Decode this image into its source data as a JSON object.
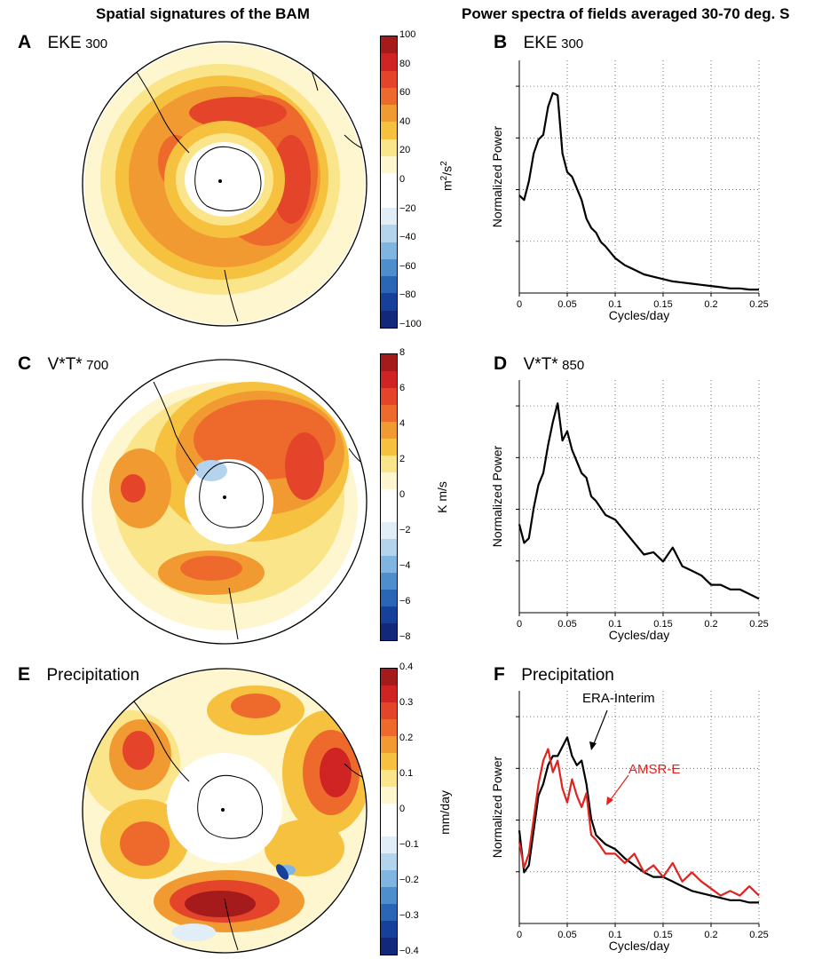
{
  "titles": {
    "left": "Spatial signatures of the BAM",
    "right": "Power spectra of fields averaged 30-70 deg. S"
  },
  "panels": {
    "A": {
      "letter": "A",
      "name": "EKE",
      "level": "300",
      "unit_base": "m",
      "unit_sup1": "2",
      "unit_mid": "/s",
      "unit_sup2": "2"
    },
    "B": {
      "letter": "B",
      "name": "EKE",
      "level": "300"
    },
    "C": {
      "letter": "C",
      "name": "V*T*",
      "level": "700",
      "unit": "K m/s"
    },
    "D": {
      "letter": "D",
      "name": "V*T*",
      "level": "850"
    },
    "E": {
      "letter": "E",
      "name": "Precipitation",
      "unit": "mm/day"
    },
    "F": {
      "letter": "F",
      "name": "Precipitation",
      "ann_black": "ERA-Interim",
      "ann_red": "AMSR-E"
    }
  },
  "colorbars": {
    "A": [
      "100",
      "80",
      "60",
      "40",
      "20",
      "0",
      "−20",
      "−40",
      "−60",
      "−80",
      "−100"
    ],
    "C": [
      "8",
      "6",
      "4",
      "2",
      "0",
      "−2",
      "−4",
      "−6",
      "−8"
    ],
    "E": [
      "0.4",
      "0.3",
      "0.2",
      "0.1",
      "0",
      "−0.1",
      "−0.2",
      "−0.3",
      "−0.4"
    ]
  },
  "colorbar_colors": [
    "#a51b1b",
    "#d02323",
    "#e4452a",
    "#ee6a2c",
    "#f29a32",
    "#f6c13f",
    "#fbe58a",
    "#fdf6cf",
    "#ffffff",
    "#ffffff",
    "#e1eef8",
    "#b4d4ee",
    "#7fb5e0",
    "#4f8ecd",
    "#2a66b5",
    "#17409a",
    "#12287a"
  ],
  "chart_data": [
    {
      "type": "line",
      "panel": "B",
      "xlabel": "Cycles/day",
      "ylabel": "Normalized Power",
      "xlim": [
        0,
        0.25
      ],
      "xticks": [
        "0",
        "0.05",
        "0.1",
        "0.15",
        "0.2",
        "0.25"
      ],
      "series": [
        {
          "color": "#000000",
          "x": [
            0,
            0.005,
            0.01,
            0.015,
            0.02,
            0.025,
            0.03,
            0.035,
            0.04,
            0.045,
            0.05,
            0.055,
            0.06,
            0.065,
            0.07,
            0.075,
            0.08,
            0.085,
            0.09,
            0.1,
            0.11,
            0.12,
            0.13,
            0.14,
            0.15,
            0.16,
            0.17,
            0.18,
            0.19,
            0.2,
            0.21,
            0.22,
            0.23,
            0.24,
            0.25
          ],
          "y": [
            0.42,
            0.4,
            0.48,
            0.6,
            0.66,
            0.68,
            0.8,
            0.86,
            0.85,
            0.6,
            0.52,
            0.5,
            0.45,
            0.4,
            0.32,
            0.28,
            0.26,
            0.22,
            0.2,
            0.15,
            0.12,
            0.1,
            0.08,
            0.07,
            0.06,
            0.05,
            0.045,
            0.04,
            0.035,
            0.03,
            0.025,
            0.02,
            0.02,
            0.015,
            0.015
          ]
        }
      ]
    },
    {
      "type": "line",
      "panel": "D",
      "xlabel": "Cycles/day",
      "ylabel": "Normalized Power",
      "xlim": [
        0,
        0.25
      ],
      "xticks": [
        "0",
        "0.05",
        "0.1",
        "0.15",
        "0.2",
        "0.25"
      ],
      "series": [
        {
          "color": "#000000",
          "x": [
            0,
            0.005,
            0.01,
            0.015,
            0.02,
            0.025,
            0.03,
            0.035,
            0.04,
            0.045,
            0.05,
            0.055,
            0.06,
            0.065,
            0.07,
            0.075,
            0.08,
            0.09,
            0.1,
            0.11,
            0.12,
            0.13,
            0.14,
            0.15,
            0.16,
            0.17,
            0.18,
            0.19,
            0.2,
            0.21,
            0.22,
            0.23,
            0.24,
            0.25
          ],
          "y": [
            0.38,
            0.3,
            0.32,
            0.45,
            0.55,
            0.6,
            0.72,
            0.82,
            0.9,
            0.74,
            0.78,
            0.7,
            0.65,
            0.6,
            0.58,
            0.5,
            0.48,
            0.42,
            0.4,
            0.35,
            0.3,
            0.25,
            0.26,
            0.22,
            0.28,
            0.2,
            0.18,
            0.16,
            0.12,
            0.12,
            0.1,
            0.1,
            0.08,
            0.06
          ]
        }
      ]
    },
    {
      "type": "line",
      "panel": "F",
      "xlabel": "Cycles/day",
      "ylabel": "Normalized Power",
      "xlim": [
        0,
        0.25
      ],
      "xticks": [
        "0",
        "0.05",
        "0.1",
        "0.15",
        "0.2",
        "0.25"
      ],
      "series": [
        {
          "name": "ERA-Interim",
          "color": "#000000",
          "x": [
            0,
            0.005,
            0.01,
            0.015,
            0.02,
            0.025,
            0.03,
            0.035,
            0.04,
            0.045,
            0.05,
            0.055,
            0.06,
            0.065,
            0.07,
            0.075,
            0.08,
            0.09,
            0.1,
            0.11,
            0.12,
            0.13,
            0.14,
            0.15,
            0.16,
            0.17,
            0.18,
            0.19,
            0.2,
            0.21,
            0.22,
            0.23,
            0.24,
            0.25
          ],
          "y": [
            0.4,
            0.22,
            0.25,
            0.4,
            0.55,
            0.6,
            0.68,
            0.72,
            0.72,
            0.76,
            0.8,
            0.72,
            0.68,
            0.7,
            0.6,
            0.45,
            0.38,
            0.34,
            0.32,
            0.28,
            0.25,
            0.22,
            0.2,
            0.2,
            0.18,
            0.16,
            0.14,
            0.13,
            0.12,
            0.11,
            0.1,
            0.1,
            0.09,
            0.09
          ]
        },
        {
          "name": "AMSR-E",
          "color": "#e0231f",
          "x": [
            0,
            0.005,
            0.01,
            0.015,
            0.02,
            0.025,
            0.03,
            0.035,
            0.04,
            0.045,
            0.05,
            0.055,
            0.06,
            0.065,
            0.07,
            0.075,
            0.08,
            0.09,
            0.1,
            0.11,
            0.12,
            0.13,
            0.14,
            0.15,
            0.16,
            0.17,
            0.18,
            0.19,
            0.2,
            0.21,
            0.22,
            0.23,
            0.24,
            0.25
          ],
          "y": [
            0.35,
            0.24,
            0.3,
            0.45,
            0.6,
            0.7,
            0.75,
            0.65,
            0.7,
            0.58,
            0.52,
            0.62,
            0.55,
            0.5,
            0.56,
            0.38,
            0.36,
            0.3,
            0.3,
            0.26,
            0.3,
            0.22,
            0.25,
            0.2,
            0.26,
            0.18,
            0.22,
            0.18,
            0.15,
            0.12,
            0.14,
            0.12,
            0.16,
            0.12
          ]
        }
      ]
    }
  ]
}
